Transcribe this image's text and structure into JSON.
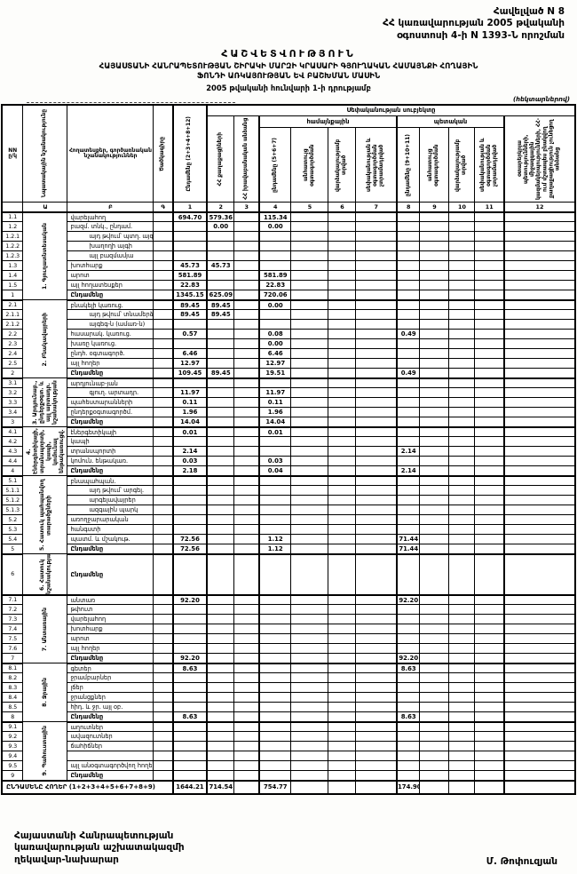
{
  "header": {
    "appendix_lines": [
      "Հավելված N 8",
      "ՀՀ կառավարության 2005 թվականի",
      "օգոստոսի 4-ի N 1393-Ն որոշման"
    ],
    "title": "ՀԱՇՎԵՏՎՈՒԹՅՈՒՆ",
    "subtitle_lines": [
      "ՀԱՅԱՍՏԱՆԻ ՀԱՆՐԱՊԵՏՈՒԹՅԱՆ ՇԻՐԱԿԻ ՄԱՐԶԻ ԿՐԱՍԱՐԻ ԳՅՈՒՂԱԿԱՆ ՀԱՄԱՅՆՔԻ ՀՈՂԱՅԻՆ",
      "ՖՈՆԴԻ ԱՌԿԱՅՈՒԹՅԱՆ ԵՎ ԲԱՇԽՄԱՆ ՄԱՍԻՆ"
    ],
    "as_of": "2005 թվականի հունվարի 1-ի դրությամբ",
    "units_note": "(հեկտարներով)"
  },
  "table": {
    "columns": {
      "nn": [
        "NN",
        "ը/կ"
      ],
      "a": "Նպատակային նշանակությունը",
      "b": "Հողատեսքեր, գործառնական նշանակություններ",
      "g": "Ծածկագիրը",
      "c1": "Ընդամենը (2+3+4+8+12)",
      "ownership_group": "Սեփականության սուբյեկտը",
      "c2": "ՀՀ քաղաքացիների",
      "c3": "ՀՀ իրավաբանական անձանց",
      "community_group": "համայնքային",
      "state_group": "պետական",
      "c4": "ընդամենը (5+6+7)",
      "c5": "անհատույց օգտագործման",
      "c6": "վարձակալությամբ տրված",
      "c7": "սեփականության և օգտագործման չտրամադրված",
      "c8": "ընդամենը (9+10+11)",
      "c9": "անհատույց օգտագործման",
      "c10": "վարձակալությամբ տրված",
      "c11": "սեփականության և օգտագործման չտրամադրված",
      "c12": "օտարերկրյա պետությունների, միջազգային կազմակերպությունների, ՀՀ-ում մշտապես բնակվող քաղաքացիություն չունեցող անձանց"
    },
    "col_letters": [
      "",
      "Ա",
      "Բ",
      "Գ",
      "1",
      "2",
      "3",
      "4",
      "5",
      "6",
      "7",
      "8",
      "9",
      "10",
      "11",
      "12"
    ],
    "sections": [
      {
        "title": "1. Գյուղատնտեսական",
        "rows": [
          {
            "nn": "1.1",
            "label": "վարելահող",
            "values": {
              "c1": "694.70",
              "c2": "579.36",
              "c4": "115.34"
            }
          },
          {
            "nn": "1.2",
            "label": "բազմ. տնկ., ընդամ.",
            "values": {
              "c2": "0.00",
              "c4": "0.00"
            }
          },
          {
            "nn": "1.2.1",
            "label": "այդ թվում՝ պտղ. այգի",
            "indent": true
          },
          {
            "nn": "1.2.2",
            "label": "խաղողի այգի",
            "indent": true
          },
          {
            "nn": "1.2.3",
            "label": "այլ բազմամյա",
            "indent": true
          },
          {
            "nn": "1.3",
            "label": "խոտհարք",
            "values": {
              "c1": "45.73",
              "c2": "45.73"
            }
          },
          {
            "nn": "1.4",
            "label": "արոտ",
            "values": {
              "c1": "581.89",
              "c4": "581.89"
            }
          },
          {
            "nn": "1.5",
            "label": "այլ հողատեսքեր",
            "values": {
              "c1": "22.83",
              "c4": "22.83"
            }
          },
          {
            "nn": "1",
            "label": "Ընդամենը",
            "total": true,
            "values": {
              "c1": "1345.15",
              "c2": "625.09",
              "c4": "720.06"
            }
          }
        ]
      },
      {
        "title": "2. Բնակավայրերի",
        "rows": [
          {
            "nn": "2.1",
            "label": "բնակելի կառուց.",
            "values": {
              "c1": "89.45",
              "c2": "89.45",
              "c4": "0.00"
            }
          },
          {
            "nn": "2.1.1",
            "label": "այդ թվում՝ տնամերձ",
            "indent": true,
            "values": {
              "c1": "89.45",
              "c2": "89.45"
            }
          },
          {
            "nn": "2.1.2",
            "label": "այգեգ-ն (ամառ-ն)",
            "indent": true
          },
          {
            "nn": "2.2",
            "label": "հասարակ. կառուց.",
            "values": {
              "c1": "0.57",
              "c4": "0.08",
              "c8": "0.49"
            }
          },
          {
            "nn": "2.3",
            "label": "խառը կառուց.",
            "values": {
              "c4": "0.00"
            }
          },
          {
            "nn": "2.4",
            "label": "ընդհ. օգտագործ.",
            "values": {
              "c1": "6.46",
              "c4": "6.46"
            }
          },
          {
            "nn": "2.5",
            "label": "այլ հողեր",
            "values": {
              "c1": "12.97",
              "c4": "12.97"
            }
          },
          {
            "nn": "2",
            "label": "Ընդամենը",
            "total": true,
            "values": {
              "c1": "109.45",
              "c2": "89.45",
              "c4": "19.51",
              "c8": "0.49"
            }
          }
        ]
      },
      {
        "title": "3. Արդյունաբ., ընդերքօգտ. և այլ արտադր. նշանակության",
        "rows": [
          {
            "nn": "3.1",
            "label": "արդյունաբ-յան"
          },
          {
            "nn": "3.2",
            "label": "գյուղ. արտադր.",
            "indent": true,
            "values": {
              "c1": "11.97",
              "c4": "11.97"
            }
          },
          {
            "nn": "3.3",
            "label": "պահեստարանների",
            "values": {
              "c1": "0.11",
              "c4": "0.11"
            }
          },
          {
            "nn": "3.4",
            "label": "ընդերքօգտագործմ.",
            "values": {
              "c1": "1.96",
              "c4": "1.96"
            }
          },
          {
            "nn": "3",
            "label": "Ընդամենը",
            "total": true,
            "values": {
              "c1": "14.04",
              "c4": "14.04"
            }
          }
        ]
      },
      {
        "title": "4. Էներգետիկայի, տրանսպորտի, կապի, կոմունալ ենթակառուցվ.",
        "rows": [
          {
            "nn": "4.1",
            "label": "էներգետիկայի",
            "values": {
              "c1": "0.01",
              "c4": "0.01"
            }
          },
          {
            "nn": "4.2",
            "label": "կապի"
          },
          {
            "nn": "4.3",
            "label": "տրանսպորտի",
            "values": {
              "c1": "2.14",
              "c8": "2.14"
            }
          },
          {
            "nn": "4.4",
            "label": "կոմուն. ենթակառ.",
            "values": {
              "c1": "0.03",
              "c4": "0.03"
            }
          },
          {
            "nn": "4",
            "label": "Ընդամենը",
            "total": true,
            "values": {
              "c1": "2.18",
              "c4": "0.04",
              "c8": "2.14"
            }
          }
        ]
      },
      {
        "title": "5. Հատուկ պահպանվող տարածքների",
        "rows": [
          {
            "nn": "5.1",
            "label": "բնապահպան."
          },
          {
            "nn": "5.1.1",
            "label": "այդ թվում՝ արգել.",
            "indent": true
          },
          {
            "nn": "5.1.2",
            "label": "արգելավայրեր",
            "indent": true
          },
          {
            "nn": "5.1.3",
            "label": "ազգային պարկ",
            "indent": true
          },
          {
            "nn": "5.2",
            "label": "առողջարարական"
          },
          {
            "nn": "5.3",
            "label": "հանգստի"
          },
          {
            "nn": "5.4",
            "label": "պատմ. և մշակութ.",
            "values": {
              "c1": "72.56",
              "c4": "1.12",
              "c8": "71.44"
            }
          },
          {
            "nn": "5",
            "label": "Ընդամենը",
            "total": true,
            "values": {
              "c1": "72.56",
              "c4": "1.12",
              "c8": "71.44"
            }
          }
        ]
      },
      {
        "title": "6. Հատուկ նշանակության",
        "tall": true,
        "rows": [
          {
            "nn": "6",
            "label": "Ընդամենը",
            "total": true
          }
        ]
      },
      {
        "title": "7. Անտառային",
        "rows": [
          {
            "nn": "7.1",
            "label": "անտառ",
            "values": {
              "c1": "92.20",
              "c8": "92.20"
            }
          },
          {
            "nn": "7.2",
            "label": "թփուտ"
          },
          {
            "nn": "7.3",
            "label": "վարելահող"
          },
          {
            "nn": "7.4",
            "label": "խոտհարք"
          },
          {
            "nn": "7.5",
            "label": "արոտ"
          },
          {
            "nn": "7.6",
            "label": "այլ հողեր"
          },
          {
            "nn": "7",
            "label": "Ընդամենը",
            "total": true,
            "values": {
              "c1": "92.20",
              "c8": "92.20"
            }
          }
        ]
      },
      {
        "title": "8. Ջրային",
        "rows": [
          {
            "nn": "8.1",
            "label": "գետեր",
            "values": {
              "c1": "8.63",
              "c8": "8.63"
            }
          },
          {
            "nn": "8.2",
            "label": "ջրամբարներ"
          },
          {
            "nn": "8.3",
            "label": "լճեր"
          },
          {
            "nn": "8.4",
            "label": "ջրանցքներ"
          },
          {
            "nn": "8.5",
            "label": "հիդ. և ջր. այլ օբ."
          },
          {
            "nn": "8",
            "label": "Ընդամենը",
            "total": true,
            "values": {
              "c1": "8.63",
              "c8": "8.63"
            }
          }
        ]
      },
      {
        "title": "9. Պահուստային",
        "rows": [
          {
            "nn": "9.1",
            "label": "աղուտներ"
          },
          {
            "nn": "9.2",
            "label": "ավազուտներ"
          },
          {
            "nn": "9.3",
            "label": "ճահիճներ"
          },
          {
            "nn": "9.4",
            "label": ""
          },
          {
            "nn": "9.5",
            "label": "այլ անօգտագործվող հողեր"
          },
          {
            "nn": "9",
            "label": "Ընդամենը",
            "total": true
          }
        ]
      }
    ],
    "grand_total": {
      "label": "ԸՆԴԱՄԵՆԸ ՀՈՂԵՐ (1+2+3+4+5+6+7+8+9)",
      "values": {
        "c1": "1644.21",
        "c2": "714.54",
        "c4": "754.77",
        "c8": "174.90"
      }
    }
  },
  "footer": {
    "role_lines": [
      "Հայաստանի Հանրապետության",
      "կառավարության աշխատակազմի",
      "ղեկավար-նախարար"
    ],
    "signatory": "Մ. Թոփուզյան"
  }
}
